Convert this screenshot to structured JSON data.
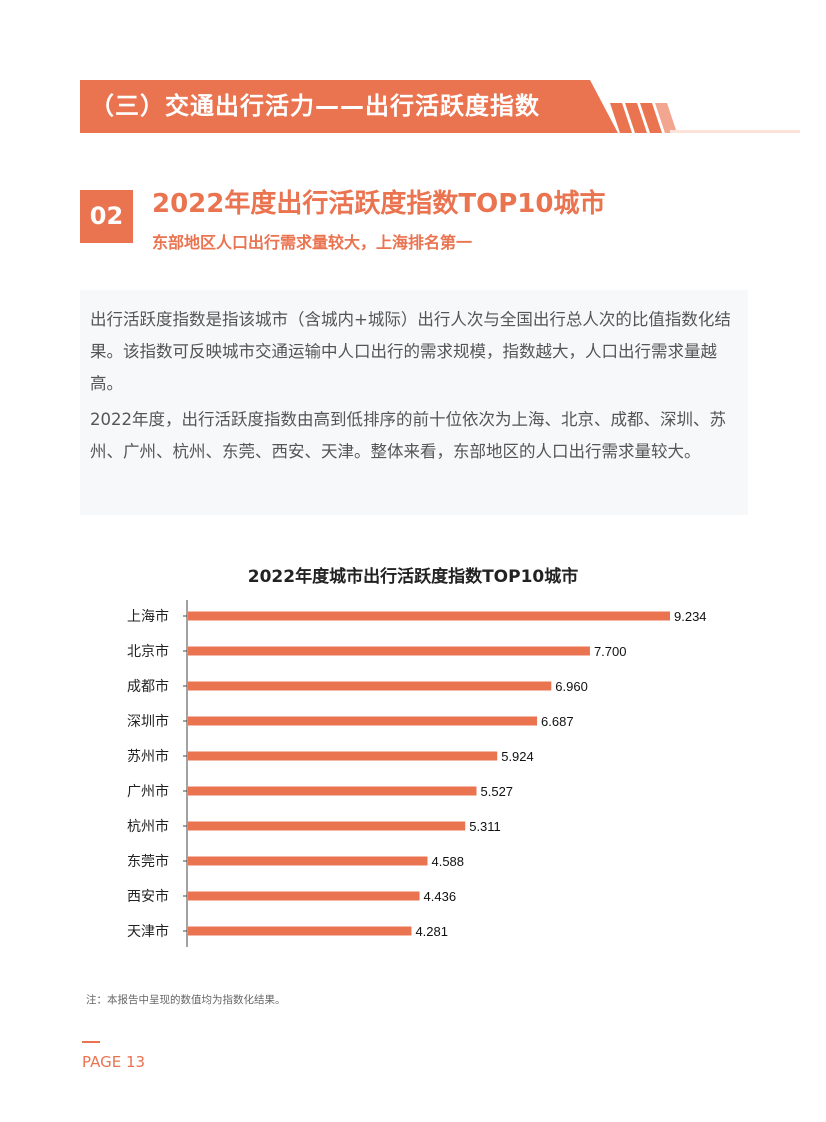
{
  "header": {
    "section_title": "（三）交通出行活力——出行活跃度指数",
    "accent_color": "#ea7350"
  },
  "section": {
    "number": "02",
    "title": "2022年度出行活跃度指数TOP10城市",
    "subtitle": "东部地区人口出行需求量较大，上海排名第一"
  },
  "body": {
    "paragraphs": [
      "出行活跃度指数是指该城市（含城内+城际）出行人次与全国出行总人次的比值指数化结果。该指数可反映城市交通运输中人口出行的需求规模，指数越大，人口出行需求量越高。",
      "2022年度，出行活跃度指数由高到低排序的前十位依次为上海、北京、成都、深圳、苏州、广州、杭州、东莞、西安、天津。整体来看，东部地区的人口出行需求量较大。"
    ]
  },
  "chart_data": {
    "type": "bar",
    "orientation": "horizontal",
    "title": "2022年度城市出行活跃度指数TOP10城市",
    "categories": [
      "上海市",
      "北京市",
      "成都市",
      "深圳市",
      "苏州市",
      "广州市",
      "杭州市",
      "东莞市",
      "西安市",
      "天津市"
    ],
    "values": [
      9.234,
      7.7,
      6.96,
      6.687,
      5.924,
      5.527,
      5.311,
      4.588,
      4.436,
      4.281
    ],
    "value_labels": [
      "9.234",
      "7.700",
      "6.960",
      "6.687",
      "5.924",
      "5.527",
      "5.311",
      "4.588",
      "4.436",
      "4.281"
    ],
    "xlim": [
      0,
      10
    ],
    "bar_color": "#ea7350",
    "xlabel": "",
    "ylabel": ""
  },
  "footer": {
    "note": "注：本报告中呈现的数值均为指数化结果。",
    "page_label": "PAGE 13"
  }
}
